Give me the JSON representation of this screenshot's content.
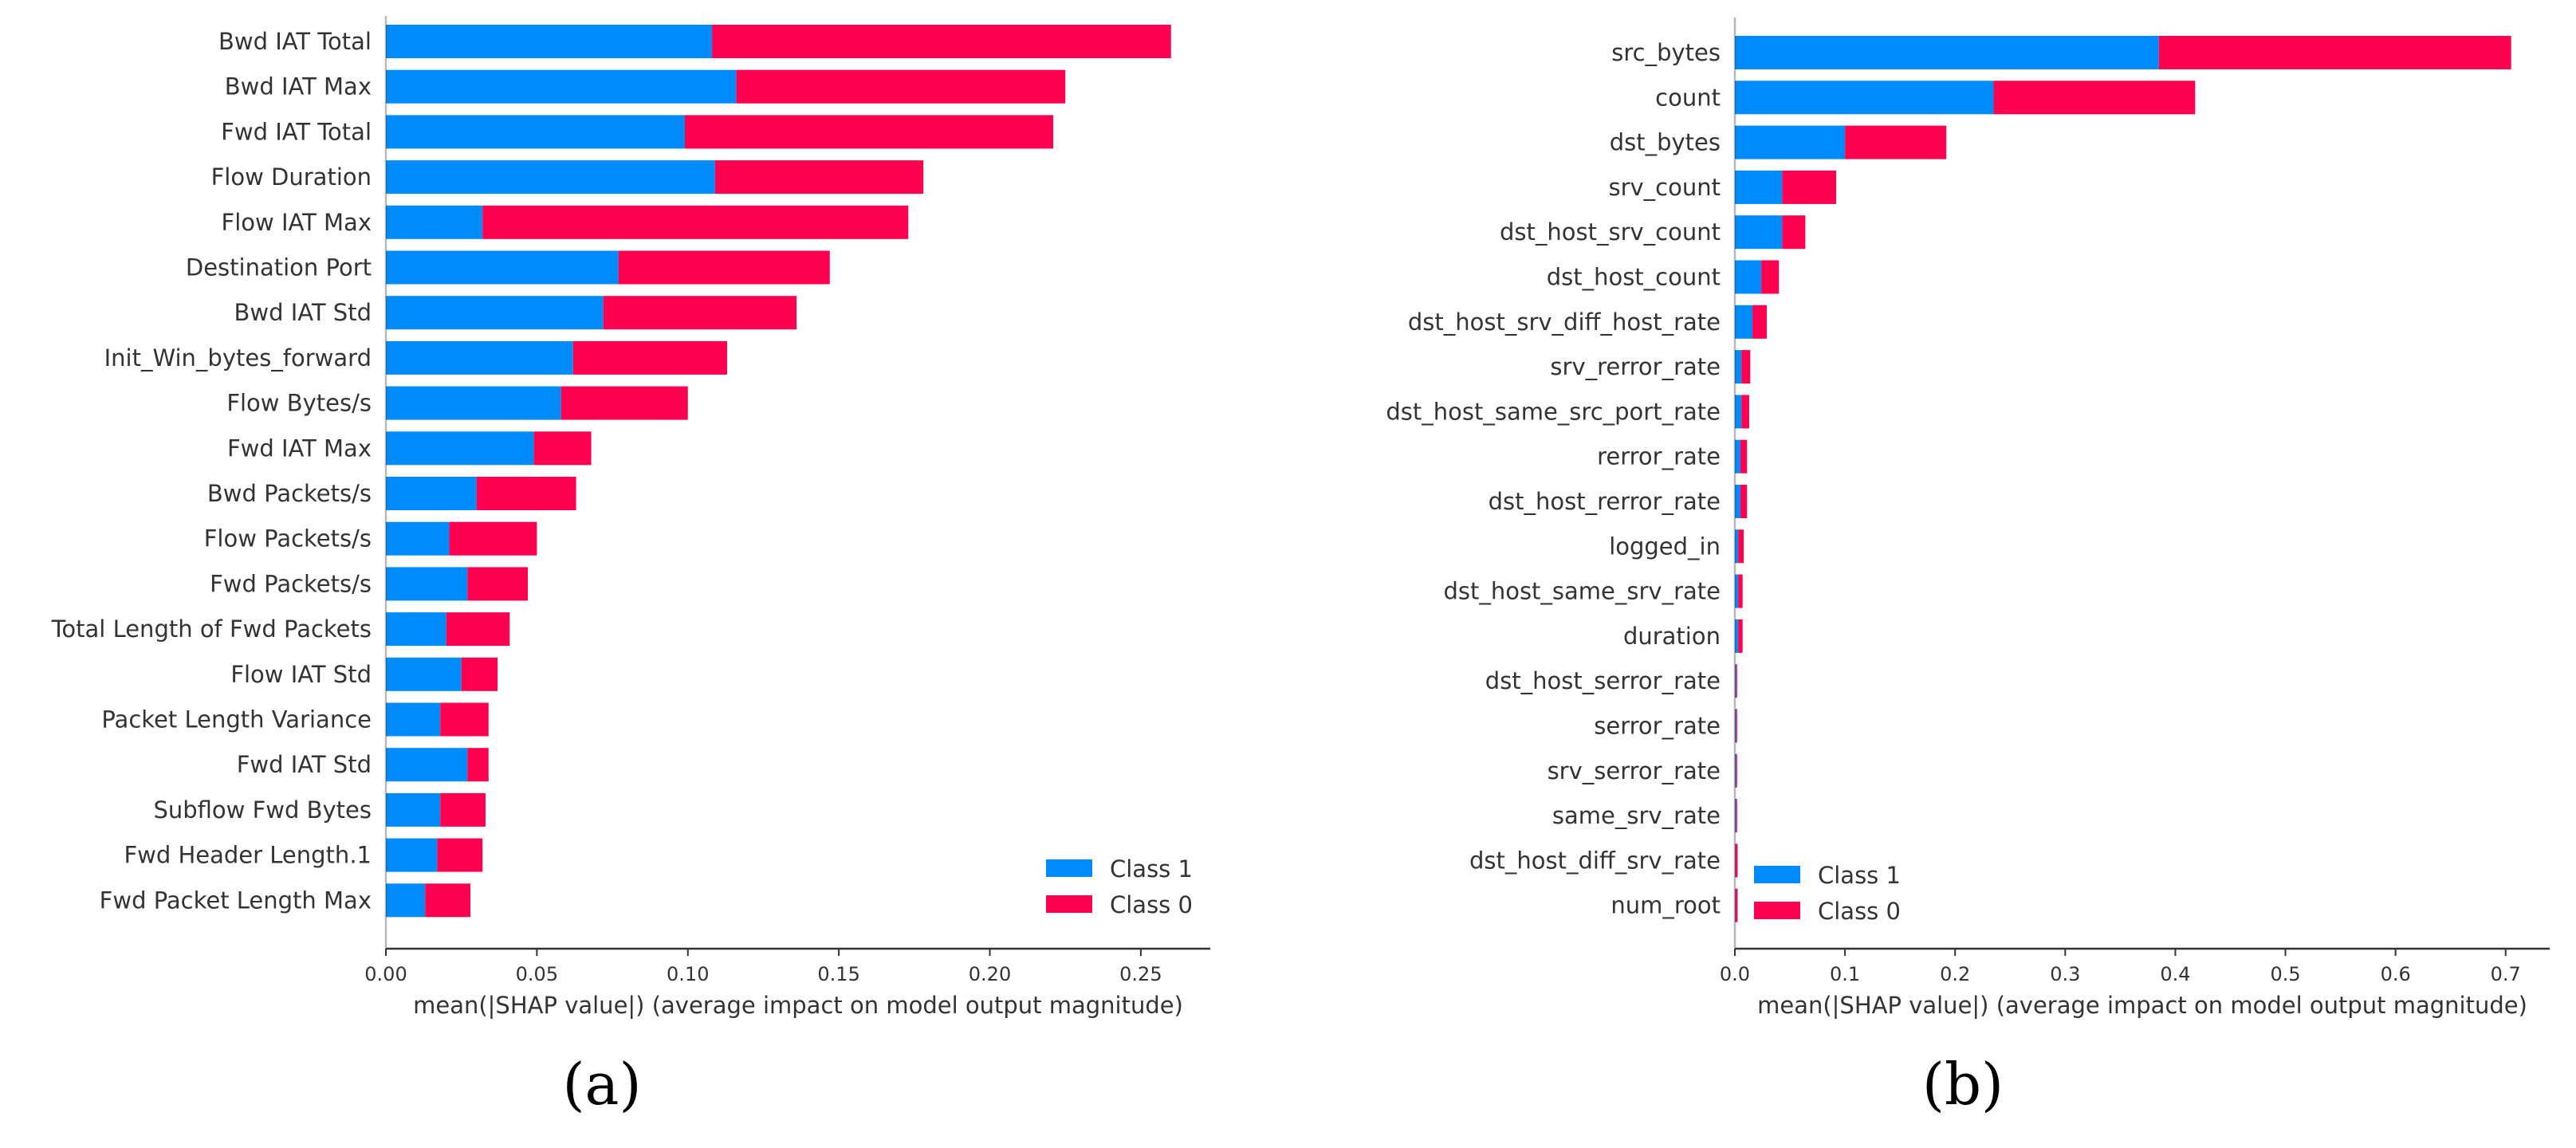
{
  "colors": {
    "class1": "#008bfb",
    "class0": "#ff0051",
    "axis": "#333333"
  },
  "chart_data": [
    {
      "type": "bar",
      "orientation": "horizontal",
      "stacked": true,
      "panel_label": "(a)",
      "xlabel": "mean(|SHAP value|) (average impact on model output magnitude)",
      "ylabel": "",
      "xlim": [
        0,
        0.273
      ],
      "xticks": [
        0.0,
        0.05,
        0.1,
        0.15,
        0.2,
        0.25
      ],
      "xtick_labels": [
        "0.00",
        "0.05",
        "0.10",
        "0.15",
        "0.20",
        "0.25"
      ],
      "grid": false,
      "legend_position": "bottom-right",
      "categories": [
        "Bwd IAT Total",
        "Bwd IAT Max",
        "Fwd IAT Total",
        "Flow Duration",
        "Flow IAT Max",
        "Destination Port",
        "Bwd IAT Std",
        "Init_Win_bytes_forward",
        "Flow Bytes/s",
        "Fwd IAT Max",
        "Bwd Packets/s",
        "Flow Packets/s",
        "Fwd Packets/s",
        "Total Length of Fwd Packets",
        "Flow IAT Std",
        "Packet Length Variance",
        "Fwd IAT Std",
        "Subflow Fwd Bytes",
        "Fwd Header Length.1",
        "Fwd Packet Length Max"
      ],
      "series": [
        {
          "name": "Class 1",
          "values": [
            0.108,
            0.116,
            0.099,
            0.109,
            0.032,
            0.077,
            0.072,
            0.062,
            0.058,
            0.049,
            0.03,
            0.021,
            0.027,
            0.02,
            0.025,
            0.018,
            0.027,
            0.018,
            0.017,
            0.013
          ]
        },
        {
          "name": "Class 0",
          "values": [
            0.152,
            0.109,
            0.122,
            0.069,
            0.141,
            0.07,
            0.064,
            0.051,
            0.042,
            0.019,
            0.033,
            0.029,
            0.02,
            0.021,
            0.012,
            0.016,
            0.007,
            0.015,
            0.015,
            0.015
          ]
        }
      ]
    },
    {
      "type": "bar",
      "orientation": "horizontal",
      "stacked": true,
      "panel_label": "(b)",
      "xlabel": "mean(|SHAP value|) (average impact on model output magnitude)",
      "ylabel": "",
      "xlim": [
        0,
        0.74
      ],
      "xticks": [
        0,
        0.1,
        0.2,
        0.3,
        0.4,
        0.5,
        0.6,
        0.7
      ],
      "xtick_labels": [
        "0.0",
        "0.1",
        "0.2",
        "0.3",
        "0.4",
        "0.5",
        "0.6",
        "0.7"
      ],
      "grid": false,
      "legend_position": "bottom-left",
      "categories": [
        "src_bytes",
        "count",
        "dst_bytes",
        "srv_count",
        "dst_host_srv_count",
        "dst_host_count",
        "dst_host_srv_diff_host_rate",
        "srv_rerror_rate",
        "dst_host_same_src_port_rate",
        "rerror_rate",
        "dst_host_rerror_rate",
        "logged_in",
        "dst_host_same_srv_rate",
        "duration",
        "dst_host_serror_rate",
        "serror_rate",
        "srv_serror_rate",
        "same_srv_rate",
        "dst_host_diff_srv_rate",
        "num_root"
      ],
      "series": [
        {
          "name": "Class 1",
          "values": [
            0.385,
            0.235,
            0.1,
            0.043,
            0.043,
            0.024,
            0.016,
            0.006,
            0.006,
            0.005,
            0.005,
            0.003,
            0.003,
            0.003,
            0.001,
            0.001,
            0.001,
            0.001,
            0.0005,
            0.0005
          ]
        },
        {
          "name": "Class 0",
          "values": [
            0.32,
            0.183,
            0.092,
            0.049,
            0.021,
            0.016,
            0.013,
            0.008,
            0.007,
            0.006,
            0.006,
            0.005,
            0.004,
            0.004,
            0.001,
            0.001,
            0.001,
            0.001,
            0.002,
            0.002
          ]
        }
      ]
    }
  ]
}
